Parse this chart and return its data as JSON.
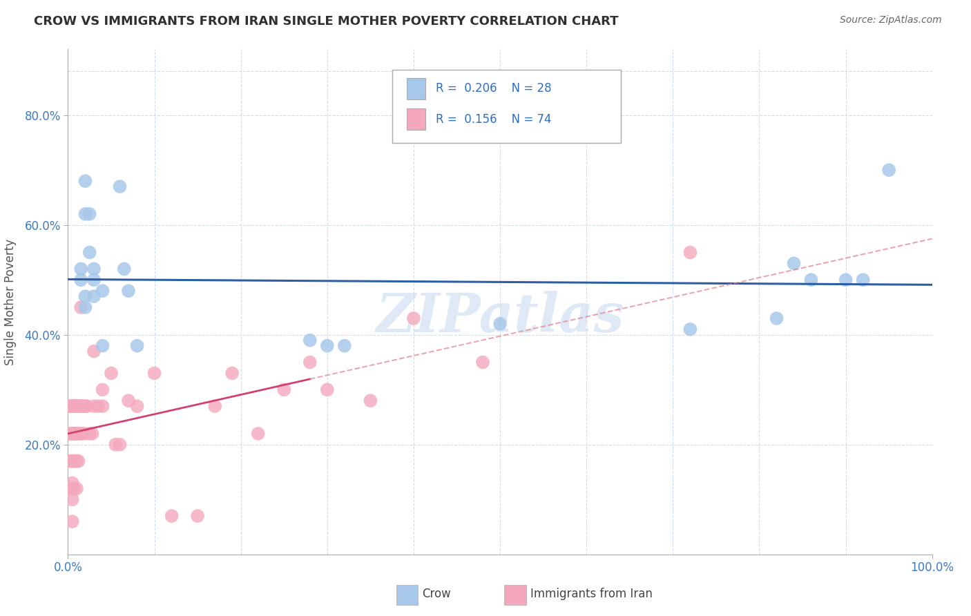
{
  "title": "CROW VS IMMIGRANTS FROM IRAN SINGLE MOTHER POVERTY CORRELATION CHART",
  "source": "Source: ZipAtlas.com",
  "ylabel": "Single Mother Poverty",
  "xlim": [
    0,
    1
  ],
  "ylim": [
    0,
    0.92
  ],
  "xtick_positions": [
    0.0,
    1.0
  ],
  "xtick_labels": [
    "0.0%",
    "100.0%"
  ],
  "ytick_values": [
    0.2,
    0.4,
    0.6,
    0.8
  ],
  "ytick_labels": [
    "20.0%",
    "40.0%",
    "60.0%",
    "80.0%"
  ],
  "watermark": "ZIPatlas",
  "legend_blue_r": "0.206",
  "legend_blue_n": "28",
  "legend_pink_r": "0.156",
  "legend_pink_n": "74",
  "legend_label_blue": "Crow",
  "legend_label_pink": "Immigrants from Iran",
  "blue_color": "#a8c8ea",
  "pink_color": "#f4a8bc",
  "trendline_blue_color": "#2e5fa3",
  "trendline_pink_color": "#d04070",
  "trendline_pink_dashed_color": "#e08090",
  "grid_color": "#d0dce8",
  "title_color": "#303030",
  "blue_scatter_x": [
    0.015,
    0.02,
    0.02,
    0.02,
    0.025,
    0.025,
    0.03,
    0.03,
    0.03,
    0.04,
    0.06,
    0.065,
    0.07,
    0.08,
    0.28,
    0.3,
    0.32,
    0.5,
    0.72,
    0.82,
    0.84,
    0.86,
    0.9,
    0.92,
    0.95,
    0.015,
    0.02,
    0.04
  ],
  "blue_scatter_y": [
    0.52,
    0.68,
    0.62,
    0.47,
    0.55,
    0.62,
    0.52,
    0.5,
    0.47,
    0.48,
    0.67,
    0.52,
    0.48,
    0.38,
    0.39,
    0.38,
    0.38,
    0.42,
    0.41,
    0.43,
    0.53,
    0.5,
    0.5,
    0.5,
    0.7,
    0.5,
    0.45,
    0.38
  ],
  "pink_scatter_x": [
    0.003,
    0.003,
    0.003,
    0.003,
    0.003,
    0.004,
    0.004,
    0.004,
    0.004,
    0.004,
    0.005,
    0.005,
    0.005,
    0.005,
    0.005,
    0.005,
    0.005,
    0.005,
    0.006,
    0.006,
    0.006,
    0.006,
    0.007,
    0.007,
    0.007,
    0.007,
    0.008,
    0.008,
    0.008,
    0.009,
    0.009,
    0.01,
    0.01,
    0.01,
    0.01,
    0.012,
    0.012,
    0.012,
    0.013,
    0.013,
    0.014,
    0.015,
    0.015,
    0.015,
    0.017,
    0.018,
    0.019,
    0.02,
    0.022,
    0.025,
    0.028,
    0.03,
    0.03,
    0.035,
    0.04,
    0.04,
    0.05,
    0.055,
    0.06,
    0.07,
    0.08,
    0.1,
    0.12,
    0.15,
    0.17,
    0.19,
    0.22,
    0.25,
    0.28,
    0.3,
    0.35,
    0.4,
    0.48,
    0.72
  ],
  "pink_scatter_y": [
    0.27,
    0.27,
    0.22,
    0.17,
    0.12,
    0.27,
    0.27,
    0.22,
    0.17,
    0.12,
    0.27,
    0.27,
    0.27,
    0.22,
    0.17,
    0.13,
    0.1,
    0.06,
    0.27,
    0.27,
    0.22,
    0.17,
    0.27,
    0.22,
    0.17,
    0.12,
    0.27,
    0.22,
    0.17,
    0.27,
    0.22,
    0.27,
    0.22,
    0.17,
    0.12,
    0.27,
    0.22,
    0.17,
    0.27,
    0.22,
    0.27,
    0.45,
    0.27,
    0.22,
    0.27,
    0.27,
    0.22,
    0.27,
    0.27,
    0.22,
    0.22,
    0.27,
    0.37,
    0.27,
    0.27,
    0.3,
    0.33,
    0.2,
    0.2,
    0.28,
    0.27,
    0.33,
    0.07,
    0.07,
    0.27,
    0.33,
    0.22,
    0.3,
    0.35,
    0.3,
    0.28,
    0.43,
    0.35,
    0.55
  ]
}
